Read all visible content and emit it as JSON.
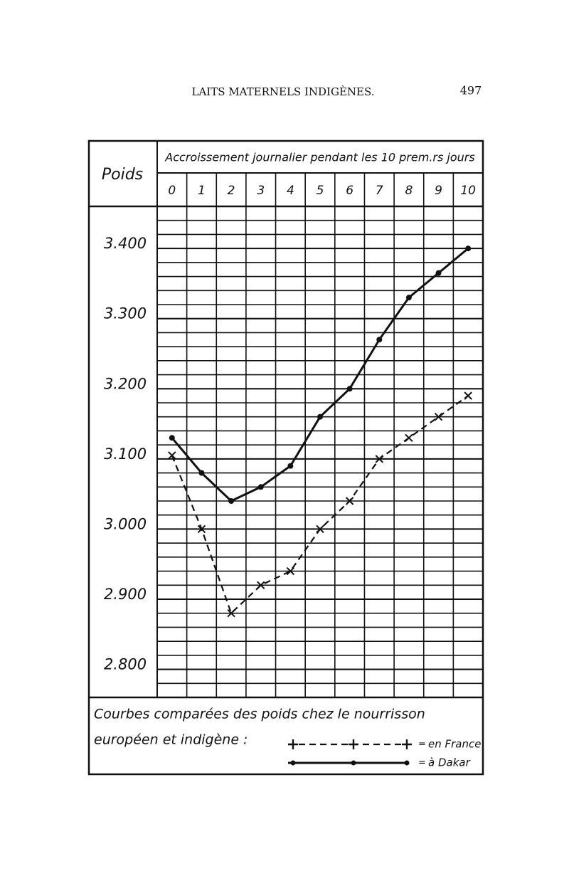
{
  "page_header": {
    "title": "LAITS MATERNELS INDIGÈNES.",
    "page_number": "497"
  },
  "chart_data": {
    "type": "line",
    "y_label": "Poids",
    "x_label": "Accroissement journalier pendant les 10 prem.rs jours",
    "caption": [
      "Courbes comparées des poids chez le nourrisson",
      "européen et indigène :"
    ],
    "legend_prefix": "=",
    "x": [
      0,
      1,
      2,
      3,
      4,
      5,
      6,
      7,
      8,
      9,
      10
    ],
    "ylim": [
      2.76,
      3.46
    ],
    "yticks": [
      {
        "value": 3.4,
        "label": "3.400"
      },
      {
        "value": 3.3,
        "label": "3.300"
      },
      {
        "value": 3.2,
        "label": "3.200"
      },
      {
        "value": 3.1,
        "label": "3.100"
      },
      {
        "value": 3.0,
        "label": "3.000"
      },
      {
        "value": 2.9,
        "label": "2.900"
      },
      {
        "value": 2.8,
        "label": "2.800"
      }
    ],
    "ygrid_step": 0.02,
    "series": [
      {
        "name": "en France",
        "color": "#111",
        "dashed": true,
        "marker": "cross",
        "values": [
          3.105,
          3.0,
          2.88,
          2.92,
          2.94,
          3.0,
          3.04,
          3.1,
          3.13,
          3.16,
          3.19
        ]
      },
      {
        "name": "à Dakar",
        "color": "#111",
        "dashed": false,
        "marker": "dot",
        "values": [
          3.13,
          3.08,
          3.04,
          3.06,
          3.09,
          3.16,
          3.2,
          3.27,
          3.33,
          3.365,
          3.4
        ]
      }
    ]
  }
}
